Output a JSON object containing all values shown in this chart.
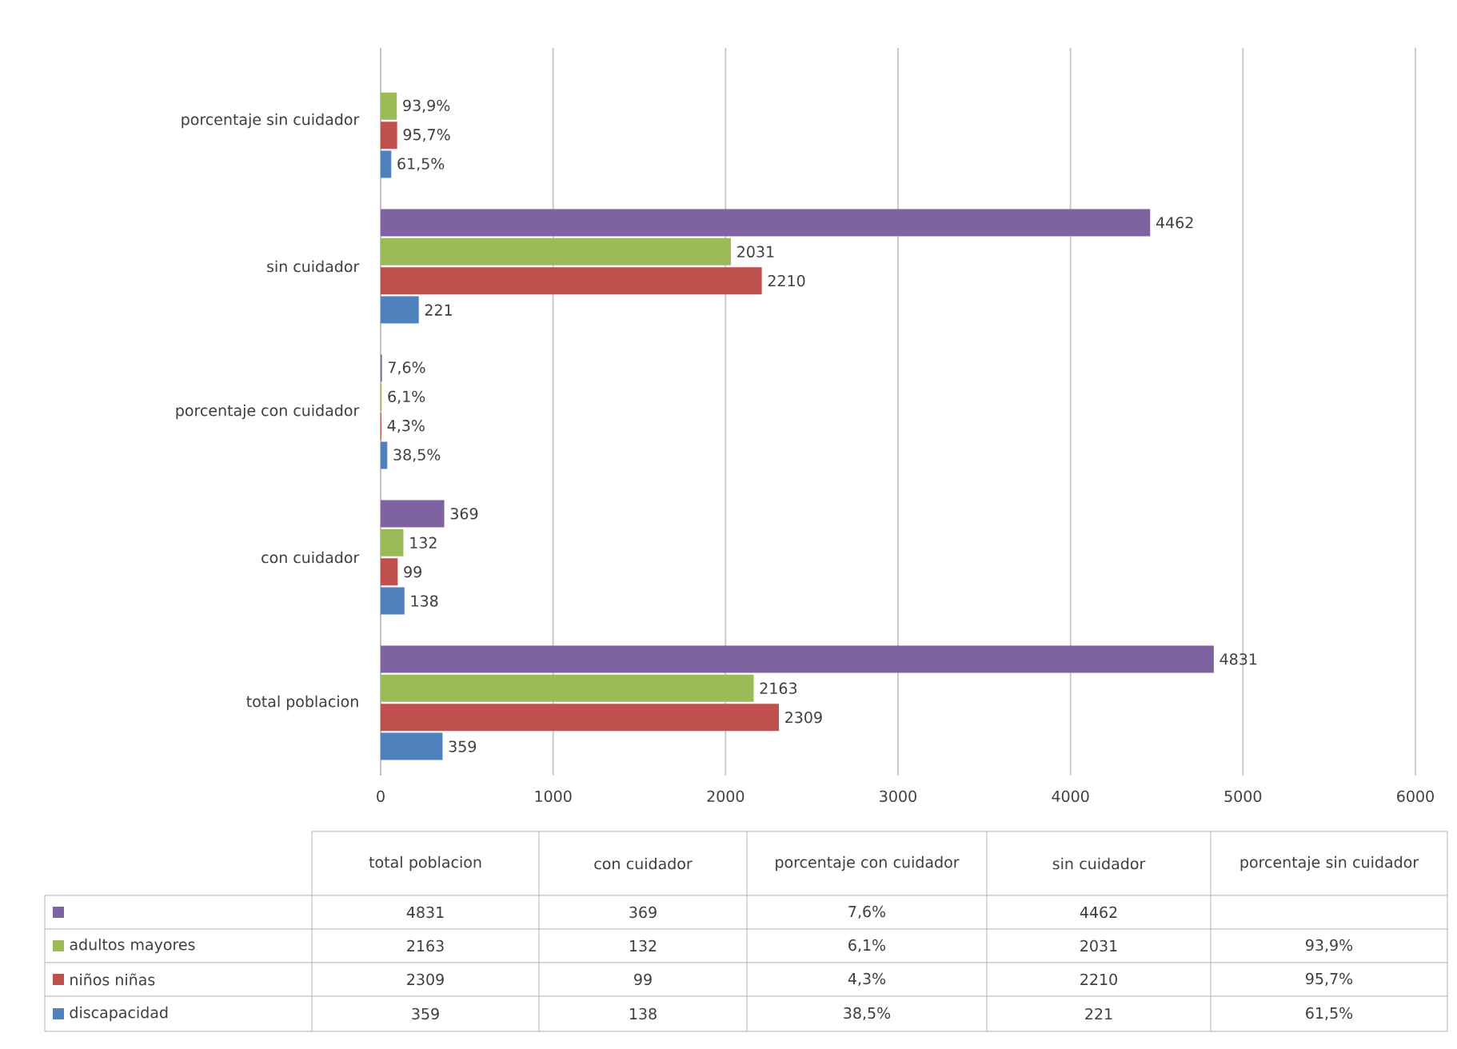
{
  "chart_data": {
    "type": "bar",
    "orientation": "horizontal",
    "categories": [
      "porcentaje sin cuidador",
      "sin cuidador",
      "porcentaje con cuidador",
      "con cuidador",
      "total poblacion"
    ],
    "series": [
      {
        "color": "#7f63a1",
        "values": [
          null,
          4462,
          7.6,
          369,
          4831
        ],
        "value_labels": [
          null,
          "4462",
          "7,6%",
          "369",
          "4831"
        ]
      },
      {
        "name": "adultos mayores",
        "color": "#9bbb59",
        "values": [
          93.9,
          2031,
          6.1,
          132,
          2163
        ],
        "value_labels": [
          "93,9%",
          "2031",
          "6,1%",
          "132",
          "2163"
        ]
      },
      {
        "name": "niños niñas",
        "color": "#c0504d",
        "values": [
          95.7,
          2210,
          4.3,
          99,
          2309
        ],
        "value_labels": [
          "95,7%",
          "2210",
          "4,3%",
          "99",
          "2309"
        ]
      },
      {
        "name": "discapacidad",
        "color": "#4f81bd",
        "values": [
          61.5,
          221,
          38.5,
          138,
          359
        ],
        "value_labels": [
          "61,5%",
          "221",
          "38,5%",
          "138",
          "359"
        ]
      }
    ],
    "xlim": [
      0,
      6000
    ],
    "xticks": [
      0,
      1000,
      2000,
      3000,
      4000,
      5000,
      6000
    ],
    "grid": "x",
    "legend": "bottom"
  }
}
